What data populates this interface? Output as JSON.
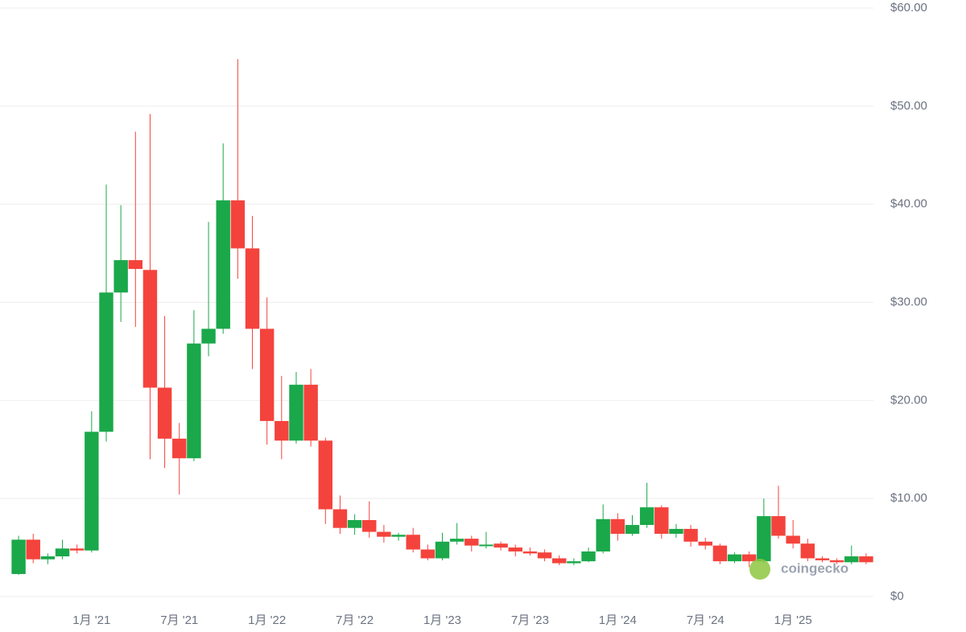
{
  "chart_data": {
    "type": "candlestick",
    "categories": [
      null,
      null,
      null,
      null,
      null,
      "1月 '21",
      null,
      null,
      null,
      null,
      null,
      "7月 '21",
      null,
      null,
      null,
      null,
      null,
      "1月 '22",
      null,
      null,
      null,
      null,
      null,
      "7月 '22",
      null,
      null,
      null,
      null,
      null,
      "1月 '23",
      null,
      null,
      null,
      null,
      null,
      "7月 '23",
      null,
      null,
      null,
      null,
      null,
      "1月 '24",
      null,
      null,
      null,
      null,
      null,
      "7月 '24",
      null,
      null,
      null,
      null,
      null,
      "1月 '25",
      null,
      null,
      null,
      null,
      null
    ],
    "open": [
      2.3,
      5.8,
      3.8,
      4.1,
      4.9,
      4.7,
      16.8,
      31.0,
      34.3,
      33.3,
      21.3,
      16.1,
      14.1,
      25.8,
      27.3,
      40.4,
      35.5,
      27.3,
      17.9,
      15.9,
      21.6,
      15.9,
      8.9,
      7.0,
      7.8,
      6.6,
      6.1,
      6.3,
      4.8,
      3.9,
      5.6,
      5.9,
      5.2,
      5.4,
      5.0,
      4.6,
      4.5,
      3.9,
      3.4,
      3.6,
      4.6,
      7.9,
      6.4,
      7.3,
      9.1,
      6.4,
      6.9,
      5.6,
      5.2,
      3.6,
      4.3,
      3.6,
      8.2,
      6.2,
      5.4,
      3.9,
      3.7,
      3.5,
      4.1
    ],
    "high": [
      6.2,
      6.4,
      4.4,
      5.8,
      5.3,
      18.9,
      42.0,
      39.9,
      47.4,
      49.2,
      28.6,
      17.7,
      29.2,
      38.2,
      46.2,
      54.8,
      38.8,
      30.5,
      22.5,
      22.9,
      23.2,
      16.2,
      10.3,
      8.4,
      9.7,
      7.3,
      6.5,
      7.0,
      5.3,
      6.5,
      7.5,
      6.2,
      6.6,
      5.6,
      5.3,
      5.0,
      4.8,
      4.2,
      3.9,
      5.0,
      9.4,
      8.5,
      8.3,
      11.6,
      9.3,
      7.4,
      7.3,
      6.0,
      5.4,
      4.5,
      4.6,
      10.0,
      11.3,
      7.8,
      5.9,
      4.1,
      3.9,
      5.2,
      4.4
    ],
    "low": [
      2.2,
      3.4,
      3.3,
      3.8,
      4.4,
      4.5,
      15.8,
      28.0,
      27.5,
      14.0,
      13.1,
      10.4,
      13.8,
      24.5,
      26.8,
      32.4,
      23.2,
      15.5,
      14.0,
      15.6,
      15.3,
      7.4,
      6.4,
      6.3,
      6.0,
      5.5,
      5.7,
      4.5,
      3.7,
      3.7,
      5.3,
      4.6,
      4.9,
      4.7,
      4.1,
      4.2,
      3.6,
      3.2,
      3.2,
      3.5,
      4.4,
      5.7,
      6.2,
      7.0,
      5.9,
      6.0,
      5.1,
      4.8,
      3.3,
      3.4,
      3.0,
      3.4,
      5.9,
      4.9,
      3.6,
      3.5,
      3.3,
      3.3,
      3.3
    ],
    "close": [
      5.8,
      3.8,
      4.1,
      4.9,
      4.7,
      16.8,
      31.0,
      34.3,
      33.4,
      21.3,
      16.1,
      14.1,
      25.8,
      27.3,
      40.4,
      35.5,
      27.3,
      17.9,
      15.9,
      21.6,
      15.9,
      8.9,
      7.0,
      7.8,
      6.6,
      6.1,
      6.3,
      4.8,
      3.9,
      5.6,
      5.9,
      5.2,
      5.3,
      5.0,
      4.6,
      4.4,
      3.9,
      3.4,
      3.6,
      4.6,
      7.9,
      6.4,
      7.3,
      9.1,
      6.4,
      6.9,
      5.6,
      5.2,
      3.6,
      4.3,
      3.6,
      8.2,
      6.2,
      5.4,
      3.9,
      3.7,
      3.5,
      4.1,
      3.5
    ],
    "up_color": "#1aa84a",
    "down_color": "#f4433c",
    "ylim": [
      0,
      60
    ],
    "yticks": [
      {
        "value": 0,
        "label": "$0"
      },
      {
        "value": 10,
        "label": "$10.00"
      },
      {
        "value": 20,
        "label": "$20.00"
      },
      {
        "value": 30,
        "label": "$30.00"
      },
      {
        "value": 40,
        "label": "$40.00"
      },
      {
        "value": 50,
        "label": "$50.00"
      },
      {
        "value": 60,
        "label": "$60.00"
      }
    ],
    "grid": true,
    "watermark": "coingecko"
  }
}
